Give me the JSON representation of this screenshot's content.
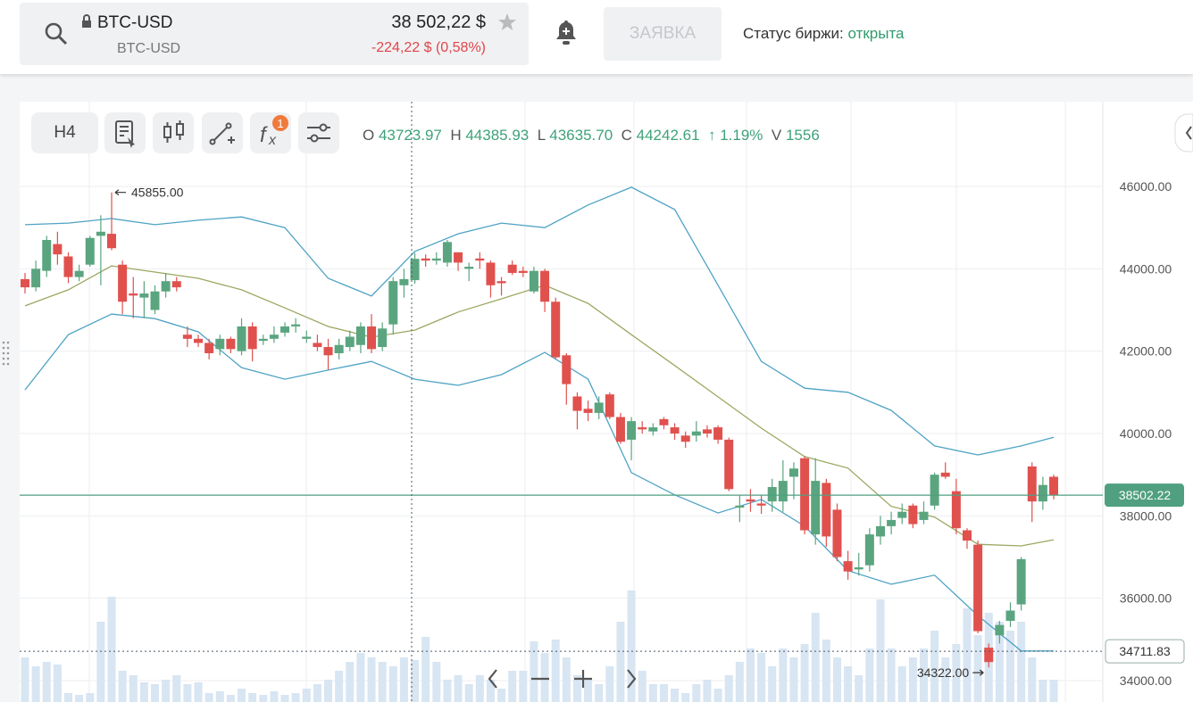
{
  "header": {
    "symbol": "BTC-USD",
    "symbol_sub": "BTC-USD",
    "price": "38 502,22 $",
    "change": "-224,22 $ (0,58%)",
    "order_button": "ЗАЯВКА",
    "status_label": "Статус биржи:",
    "status_value": "открыта"
  },
  "toolbar": {
    "interval": "H4",
    "indicator_badge": "1"
  },
  "crosshair_legend": {
    "o_label": "O",
    "o": "43723.97",
    "h_label": "H",
    "h": "44385.93",
    "l_label": "L",
    "l": "43635.70",
    "c_label": "C",
    "c": "44242.61",
    "change": "↑ 1.19%",
    "v_label": "V",
    "v": "1556"
  },
  "chart_data": {
    "type": "candlestick",
    "open": [
      43750,
      43550,
      43950,
      44600,
      44300,
      43800,
      44100,
      44800,
      44850,
      44100,
      43400,
      43300,
      43000,
      43450,
      43700,
      42400,
      42300,
      42200,
      42050,
      42300,
      42000,
      42600,
      42250,
      42300,
      42450,
      42600,
      42300,
      42200,
      42100,
      41950,
      42100,
      42150,
      42600,
      42100,
      42650,
      43600,
      43723.97,
      44250,
      44200,
      44150,
      44400,
      44000,
      44250,
      44150,
      43700,
      44100,
      43950,
      43450,
      43950,
      43200,
      41900,
      40900,
      40600,
      40500,
      40950,
      40400,
      39850,
      40150,
      40050,
      40350,
      40150,
      39950,
      39950,
      40100,
      40150,
      39850,
      38200,
      38400,
      38300,
      38350,
      38350,
      38950,
      39400,
      37550,
      38800,
      38150,
      36900,
      36700,
      36800,
      37500,
      37750,
      37950,
      38250,
      37900,
      38250,
      39050,
      38600,
      37650,
      37300,
      34800,
      35100,
      35450,
      35850,
      39200,
      38350,
      38950
    ],
    "high": [
      43900,
      44200,
      44800,
      44900,
      44400,
      44100,
      44800,
      45300,
      45855,
      44200,
      43800,
      43700,
      43600,
      43900,
      43800,
      42600,
      42400,
      42300,
      42400,
      42350,
      42800,
      42700,
      42400,
      42600,
      42700,
      42800,
      42500,
      42400,
      42300,
      42300,
      42500,
      42700,
      42900,
      42700,
      43800,
      44000,
      44385.93,
      44350,
      44400,
      44700,
      44400,
      44150,
      44400,
      44200,
      43800,
      44200,
      44050,
      44050,
      44000,
      43300,
      41950,
      41000,
      40800,
      40900,
      41000,
      40500,
      40400,
      40300,
      40250,
      40400,
      40250,
      40050,
      40300,
      40200,
      40200,
      39900,
      38500,
      38650,
      38500,
      38900,
      39350,
      39300,
      39450,
      39400,
      38900,
      38300,
      37150,
      37100,
      37700,
      38000,
      38100,
      38300,
      38300,
      38350,
      39050,
      39300,
      38900,
      37700,
      37400,
      34900,
      35450,
      35900,
      37000,
      39300,
      38950,
      39000
    ],
    "low": [
      43400,
      43450,
      43800,
      44100,
      43650,
      43700,
      44050,
      43600,
      44450,
      42900,
      42800,
      42800,
      42900,
      43300,
      43450,
      42100,
      42100,
      41800,
      41900,
      41950,
      41900,
      41750,
      42150,
      42200,
      42350,
      42450,
      42200,
      42000,
      41550,
      41800,
      42000,
      41950,
      41950,
      42000,
      42400,
      43300,
      43635.7,
      44050,
      44100,
      44050,
      43950,
      43700,
      44000,
      43300,
      43350,
      43850,
      43800,
      43400,
      42950,
      41800,
      40700,
      40100,
      40300,
      40350,
      40350,
      39750,
      39350,
      40000,
      39950,
      40100,
      39850,
      39650,
      39800,
      39900,
      39750,
      38600,
      37850,
      38100,
      38050,
      38100,
      38100,
      38400,
      37550,
      37300,
      37250,
      36900,
      36450,
      36550,
      36650,
      37300,
      37550,
      37800,
      37700,
      37800,
      38150,
      38900,
      37550,
      37200,
      35150,
      34322,
      34900,
      35300,
      35700,
      37850,
      38150,
      38400
    ],
    "close": [
      43550,
      44000,
      44700,
      44350,
      43800,
      43950,
      44750,
      44900,
      44500,
      43200,
      43350,
      43400,
      43450,
      43700,
      43550,
      42300,
      42200,
      41950,
      42300,
      42050,
      42600,
      42050,
      42300,
      42400,
      42600,
      42650,
      42350,
      42100,
      41900,
      42150,
      42350,
      42600,
      42050,
      42550,
      43700,
      43750,
      44242.61,
      44200,
      44250,
      44650,
      44150,
      44050,
      44200,
      43600,
      43650,
      43900,
      43900,
      43950,
      43200,
      41850,
      41200,
      40550,
      40500,
      40750,
      40400,
      39800,
      40300,
      40100,
      40150,
      40200,
      40000,
      39800,
      40050,
      40000,
      39850,
      38650,
      38250,
      38350,
      38250,
      38700,
      38850,
      39150,
      37650,
      38850,
      37500,
      37000,
      36650,
      36750,
      37550,
      37750,
      37900,
      38100,
      37800,
      38100,
      39000,
      38950,
      37700,
      37400,
      35200,
      34450,
      35350,
      35700,
      36950,
      38350,
      38750,
      38502.22
    ],
    "volume": [
      1650,
      1320,
      1485,
      1386,
      330,
      264,
      330,
      2970,
      3894,
      1155,
      990,
      726,
      660,
      825,
      990,
      660,
      726,
      330,
      396,
      264,
      495,
      330,
      264,
      396,
      264,
      330,
      495,
      660,
      825,
      1155,
      1485,
      1815,
      1650,
      1485,
      1320,
      1650,
      1556,
      2409,
      1485,
      825,
      990,
      660,
      990,
      825,
      495,
      1155,
      1155,
      2244,
      1815,
      2310,
      1650,
      990,
      825,
      660,
      1320,
      2970,
      4125,
      1155,
      660,
      660,
      495,
      330,
      660,
      825,
      495,
      990,
      1485,
      1980,
      1815,
      1320,
      1980,
      1650,
      2145,
      3300,
      2310,
      1650,
      1320,
      990,
      1980,
      3795,
      1980,
      1320,
      1650,
      1980,
      2640,
      1650,
      2145,
      3465,
      2475,
      3300,
      2970,
      2640,
      2970,
      1650,
      825,
      825
    ],
    "bands": {
      "x": [
        0,
        4,
        8,
        12,
        16,
        20,
        24,
        28,
        32,
        36,
        40,
        44,
        48,
        52,
        56,
        60,
        64,
        68,
        72,
        76,
        80,
        84,
        88,
        92,
        95
      ],
      "upper": [
        45070,
        45110,
        45220,
        45070,
        45180,
        45260,
        45000,
        43770,
        43340,
        44420,
        44850,
        45110,
        45000,
        45550,
        45980,
        45440,
        43600,
        41750,
        41100,
        41000,
        40560,
        39700,
        39480,
        39700,
        39910
      ],
      "middle": [
        43100,
        43490,
        44070,
        43920,
        43770,
        43490,
        43050,
        42600,
        42340,
        42510,
        42950,
        43270,
        43600,
        43160,
        42400,
        41650,
        40890,
        40130,
        39440,
        39160,
        38230,
        37970,
        37310,
        37270,
        37420
      ],
      "lower": [
        41060,
        42400,
        42900,
        42790,
        42470,
        41600,
        41320,
        41540,
        41750,
        41320,
        41170,
        41430,
        41970,
        41320,
        39050,
        38510,
        38070,
        38400,
        37750,
        36670,
        36340,
        36560,
        35580,
        34720,
        34720
      ]
    },
    "ylim": [
      33480,
      48058
    ],
    "yticks": [
      {
        "value": 34000,
        "label": "34000.00"
      },
      {
        "value": 36000,
        "label": "36000.00"
      },
      {
        "value": 38000,
        "label": "38000.00"
      },
      {
        "value": 40000,
        "label": "40000.00"
      },
      {
        "value": 42000,
        "label": "42000.00"
      },
      {
        "value": 44000,
        "label": "44000.00"
      },
      {
        "value": 46000,
        "label": "46000.00"
      }
    ],
    "grid": true,
    "colors": {
      "up": "#5aa57f",
      "down": "#e0514e",
      "upper": "#4ea3c4",
      "middle": "#9aa861",
      "lower": "#4ea3c4",
      "volume": "#d8e5f2",
      "last_price": "#4f9f80"
    },
    "last_price": {
      "value": 38502.22,
      "label": "38502.22"
    },
    "marked_level": {
      "value": 34711.83,
      "label": "34711.83"
    },
    "max_label": {
      "value": 45855,
      "label": "45855.00"
    },
    "min_label": {
      "value": 34322,
      "label": "34322.00"
    }
  }
}
